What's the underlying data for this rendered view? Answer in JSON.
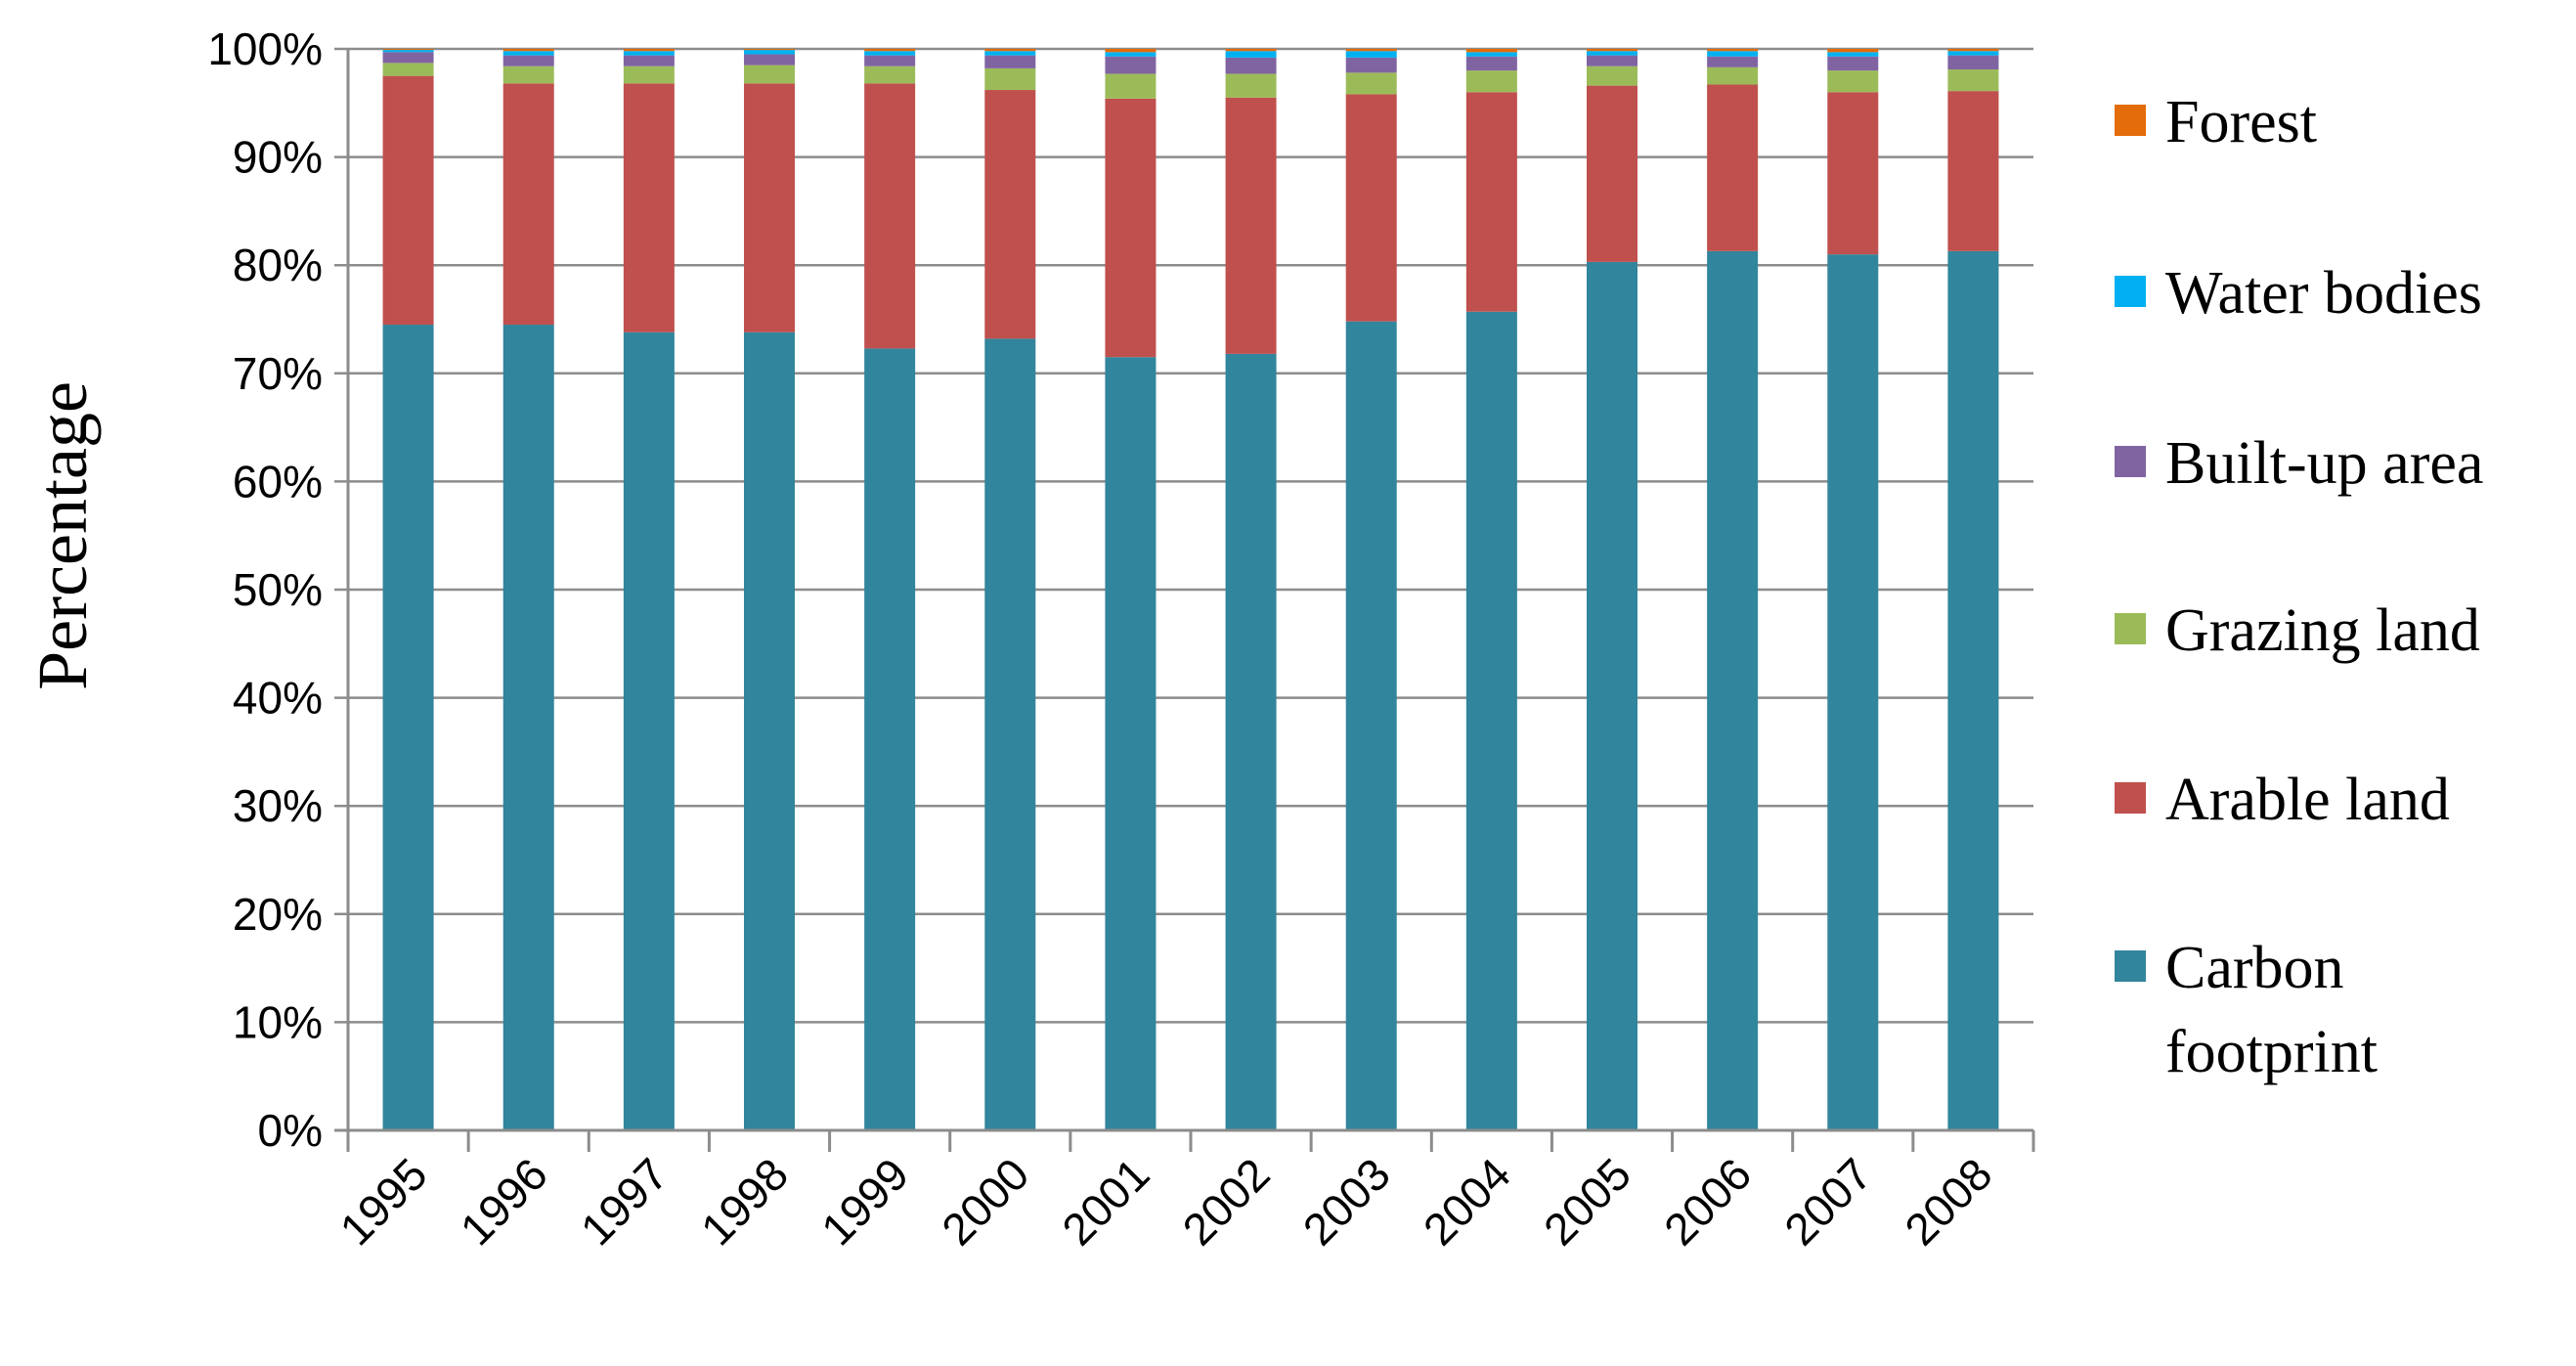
{
  "chart_data": {
    "type": "bar",
    "stacked": "percent",
    "categories": [
      "1995",
      "1996",
      "1997",
      "1998",
      "1999",
      "2000",
      "2001",
      "2002",
      "2003",
      "2004",
      "2005",
      "2006",
      "2007",
      "2008"
    ],
    "series": [
      {
        "name": "Carbon footprint",
        "color": "#31859C",
        "values": [
          74.5,
          74.5,
          73.8,
          73.8,
          72.3,
          73.2,
          71.5,
          71.8,
          74.8,
          75.7,
          80.3,
          81.3,
          81.0,
          81.3
        ]
      },
      {
        "name": "Arable land",
        "color": "#C0504D",
        "values": [
          23.0,
          22.3,
          23.0,
          23.0,
          24.5,
          23.0,
          23.9,
          23.7,
          21.0,
          20.3,
          16.3,
          15.4,
          15.0,
          14.8
        ]
      },
      {
        "name": "Grazing land",
        "color": "#9BBB59",
        "values": [
          1.2,
          1.6,
          1.6,
          1.7,
          1.6,
          2.0,
          2.3,
          2.2,
          2.0,
          2.0,
          1.8,
          1.6,
          2.0,
          2.0
        ]
      },
      {
        "name": "Built-up area",
        "color": "#8064A2",
        "values": [
          1.0,
          1.0,
          1.0,
          1.0,
          1.0,
          1.2,
          1.6,
          1.5,
          1.4,
          1.3,
          1.0,
          1.0,
          1.3,
          1.3
        ]
      },
      {
        "name": "Water bodies",
        "color": "#00B0F0",
        "values": [
          0.2,
          0.4,
          0.4,
          0.4,
          0.4,
          0.4,
          0.4,
          0.6,
          0.6,
          0.4,
          0.4,
          0.5,
          0.4,
          0.4
        ]
      },
      {
        "name": "Forest",
        "color": "#E46C0A",
        "values": [
          0.1,
          0.2,
          0.2,
          0.1,
          0.2,
          0.2,
          0.3,
          0.2,
          0.2,
          0.3,
          0.2,
          0.2,
          0.3,
          0.2
        ]
      }
    ],
    "legend_order": [
      "Forest",
      "Water bodies",
      "Built-up area",
      "Grazing land",
      "Arable land",
      "Carbon footprint"
    ],
    "y_ticks": [
      "0%",
      "10%",
      "20%",
      "30%",
      "40%",
      "50%",
      "60%",
      "70%",
      "80%",
      "90%",
      "100%"
    ],
    "ylim": [
      0,
      100
    ],
    "ylabel": "Percentage",
    "xlabel": "",
    "title": "",
    "grid": true,
    "legend_position": "right"
  }
}
